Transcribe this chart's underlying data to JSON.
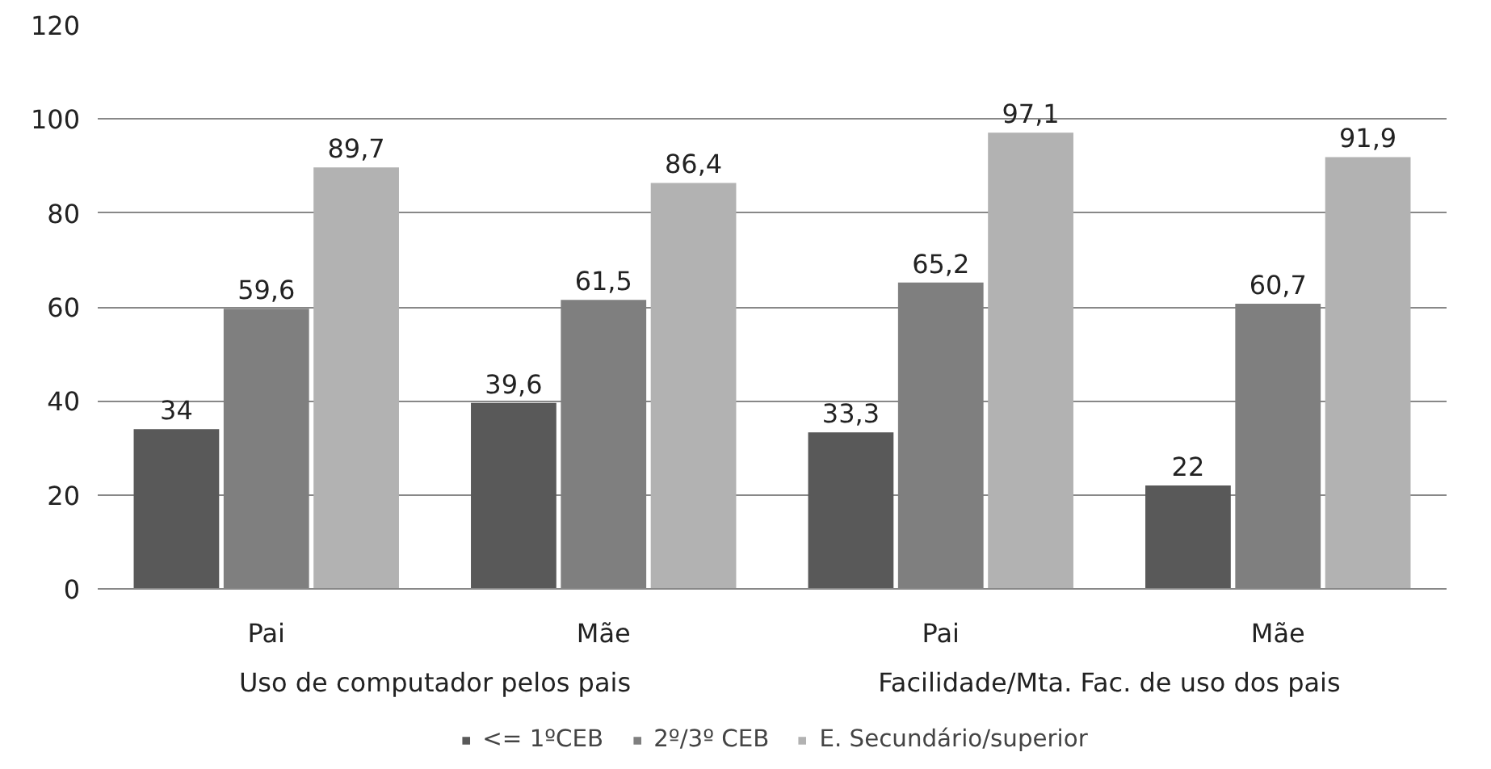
{
  "chart_data": {
    "type": "bar",
    "categories": [
      "Pai",
      "Mãe",
      "Pai",
      "Mãe"
    ],
    "annotations": [
      "Uso de computador pelos pais",
      "Facilidade/Mta. Fac. de uso dos pais"
    ],
    "series": [
      {
        "name": "<= 1ºCEB",
        "color": "#595959",
        "values": [
          34,
          39.6,
          33.3,
          22
        ],
        "value_labels": [
          "34",
          "39,6",
          "33,3",
          "22"
        ]
      },
      {
        "name": "2º/3º CEB",
        "color": "#7f7f7f",
        "values": [
          59.6,
          61.5,
          65.2,
          60.7
        ],
        "value_labels": [
          "59,6",
          "61,5",
          "65,2",
          "60,7"
        ]
      },
      {
        "name": "E. Secundário/superior",
        "color": "#b2b2b2",
        "values": [
          89.7,
          86.4,
          97.1,
          91.9
        ],
        "value_labels": [
          "89,7",
          "86,4",
          "97,1",
          "91,9"
        ]
      }
    ],
    "ylim": [
      0,
      120
    ],
    "yticks": [
      0,
      20,
      40,
      60,
      80,
      100,
      120
    ],
    "grid": "y",
    "legend": "bottom"
  }
}
